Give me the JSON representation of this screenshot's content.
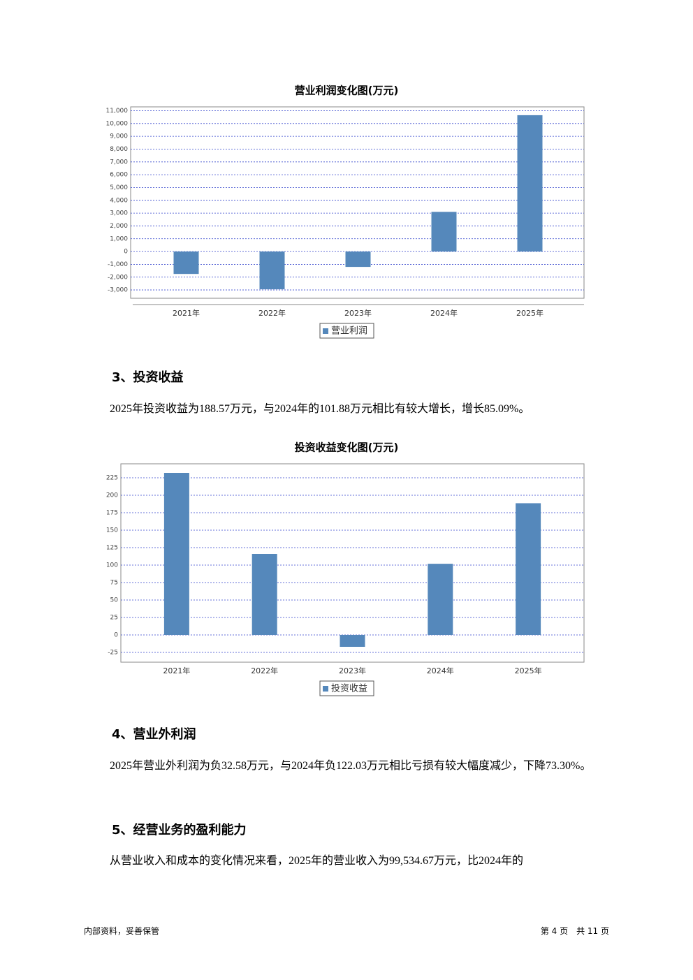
{
  "charts": [
    {
      "type": "bar",
      "title": "营业利润变化图(万元)",
      "categories": [
        "2021年",
        "2022年",
        "2023年",
        "2024年",
        "2025年"
      ],
      "series": [
        {
          "name": "营业利润",
          "color": "#5588bb",
          "values": [
            -1750,
            -2950,
            -1200,
            3100,
            10650
          ]
        }
      ],
      "ylim": [
        -3650,
        11300
      ],
      "yticks": [
        {
          "value": -3000,
          "label": "-3,000"
        },
        {
          "value": -2000,
          "label": "-2,000"
        },
        {
          "value": -1000,
          "label": "-1,000"
        },
        0,
        {
          "value": 1000,
          "label": "1,000"
        },
        {
          "value": 2000,
          "label": "2,000"
        },
        {
          "value": 3000,
          "label": "3,000"
        },
        {
          "value": 4000,
          "label": "4,000"
        },
        {
          "value": 5000,
          "label": "5,000"
        },
        {
          "value": 6000,
          "label": "6,000"
        },
        {
          "value": 7000,
          "label": "7,000"
        },
        {
          "value": 8000,
          "label": "8,000"
        },
        {
          "value": 9000,
          "label": "9,000"
        },
        {
          "value": 10000,
          "label": "10,000"
        },
        {
          "value": 11000,
          "label": "11,000"
        }
      ],
      "grid": true
    },
    {
      "type": "bar",
      "title": "投资收益变化图(万元)",
      "categories": [
        "2021年",
        "2022年",
        "2023年",
        "2024年",
        "2025年"
      ],
      "series": [
        {
          "name": "投资收益",
          "color": "#5588bb",
          "values": [
            232,
            116,
            -17,
            101.88,
            188.57
          ]
        }
      ],
      "ylim": [
        -39,
        245
      ],
      "yticks": [
        -25,
        0,
        25,
        50,
        75,
        100,
        125,
        150,
        175,
        200,
        225
      ],
      "grid": true
    }
  ],
  "sections": [
    {
      "heading": "3、投资收益",
      "paragraph": "2025年投资收益为188.57万元，与2024年的101.88万元相比有较大增长，增长85.09%。"
    },
    {
      "heading": "4、营业外利润",
      "paragraph": "2025年营业外利润为负32.58万元，与2024年负122.03万元相比亏损有较大幅度减少，下降73.30%。"
    },
    {
      "heading": "5、经营业务的盈利能力",
      "paragraph": "从营业收入和成本的变化情况来看，2025年的营业收入为99,534.67万元，比2024年的"
    }
  ],
  "footer": {
    "left": "内部资料，妥善保管",
    "right": "第 4 页　共 11 页"
  }
}
